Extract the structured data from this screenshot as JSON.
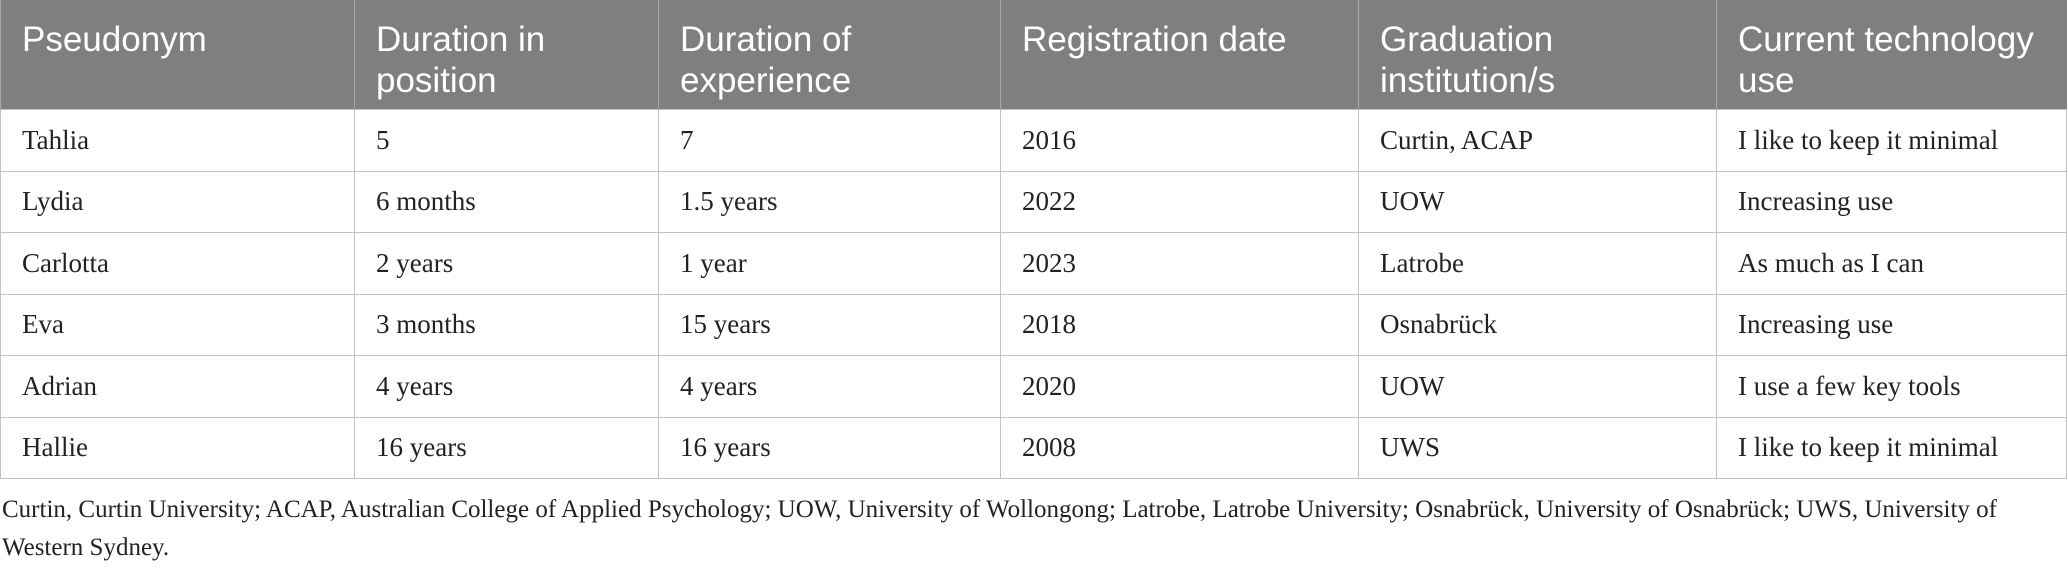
{
  "table": {
    "headers": [
      "Pseudonym",
      "Duration in position",
      "Duration of experience",
      "Registration date",
      "Graduation institution/s",
      "Current technology use"
    ],
    "rows": [
      [
        "Tahlia",
        "5",
        "7",
        "2016",
        "Curtin, ACAP",
        "I like to keep it minimal"
      ],
      [
        "Lydia",
        "6 months",
        "1.5 years",
        "2022",
        "UOW",
        "Increasing use"
      ],
      [
        "Carlotta",
        "2 years",
        "1 year",
        "2023",
        "Latrobe",
        "As much as I can"
      ],
      [
        "Eva",
        "3 months",
        "15 years",
        "2018",
        "Osnabrück",
        "Increasing use"
      ],
      [
        "Adrian",
        "4 years",
        "4 years",
        "2020",
        "UOW",
        "I use a few key tools"
      ],
      [
        "Hallie",
        "16 years",
        "16 years",
        "2008",
        "UWS",
        "I like to keep it minimal"
      ]
    ]
  },
  "footnote": "Curtin, Curtin University; ACAP, Australian College of Applied Psychology; UOW, University of Wollongong; Latrobe, Latrobe University; Osnabrück, University of Osnabrück; UWS, University of Western Sydney.",
  "colors": {
    "header_background": "#7e7f7e",
    "header_text": "#ffffff",
    "grid_line": "#c2c2c2",
    "body_text": "#222222"
  }
}
